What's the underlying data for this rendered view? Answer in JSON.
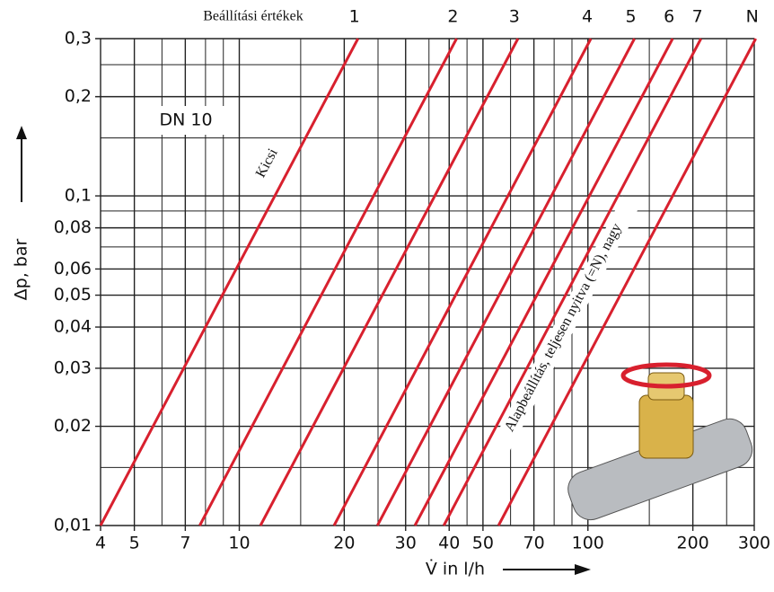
{
  "chart_data": {
    "type": "line",
    "legend_title": "Beállítási értékek",
    "x_label": "V̇ in l/h",
    "y_label": "Δp,  bar",
    "annotations": [
      "DN 10",
      "Kicsi",
      "Alapbeállítás, teljesen nyitva (=N), nagy"
    ],
    "log_x": true,
    "log_y": true,
    "grid": true,
    "xlim": [
      4,
      300
    ],
    "ylim": [
      0.01,
      0.3
    ],
    "xticks": [
      4,
      5,
      7,
      10,
      20,
      30,
      40,
      50,
      70,
      100,
      200,
      300
    ],
    "xminor": [
      6,
      8,
      9,
      15,
      25,
      35,
      45,
      60,
      80,
      90,
      150,
      250
    ],
    "yticks": [
      {
        "value": 0.01,
        "label": "0,01"
      },
      {
        "value": 0.02,
        "label": "0,02"
      },
      {
        "value": 0.03,
        "label": "0,03"
      },
      {
        "value": 0.04,
        "label": "0,04"
      },
      {
        "value": 0.05,
        "label": "0,05"
      },
      {
        "value": 0.06,
        "label": "0,06"
      },
      {
        "value": 0.08,
        "label": "0,08"
      },
      {
        "value": 0.1,
        "label": "0,1"
      },
      {
        "value": 0.2,
        "label": "0,2"
      },
      {
        "value": 0.3,
        "label": "0,3"
      }
    ],
    "yminor": [
      0.015,
      0.07,
      0.09,
      0.15,
      0.25
    ],
    "series": [
      {
        "name": "1",
        "color": "#d8202e",
        "x": [
          4,
          21.9
        ],
        "values": [
          0.01,
          0.3
        ]
      },
      {
        "name": "2",
        "color": "#d8202e",
        "x": [
          7.7,
          42
        ],
        "values": [
          0.01,
          0.3
        ]
      },
      {
        "name": "3",
        "color": "#d8202e",
        "x": [
          11.5,
          63
        ],
        "values": [
          0.01,
          0.3
        ]
      },
      {
        "name": "4",
        "color": "#d8202e",
        "x": [
          18.7,
          102
        ],
        "values": [
          0.01,
          0.3
        ]
      },
      {
        "name": "5",
        "color": "#d8202e",
        "x": [
          24.9,
          136
        ],
        "values": [
          0.01,
          0.3
        ]
      },
      {
        "name": "6",
        "color": "#d8202e",
        "x": [
          31.9,
          175
        ],
        "values": [
          0.01,
          0.3
        ]
      },
      {
        "name": "7",
        "color": "#d8202e",
        "x": [
          38.6,
          211
        ],
        "values": [
          0.01,
          0.3
        ]
      },
      {
        "name": "N",
        "color": "#d8202e",
        "x": [
          55.4,
          303
        ],
        "values": [
          0.01,
          0.3
        ]
      }
    ]
  }
}
